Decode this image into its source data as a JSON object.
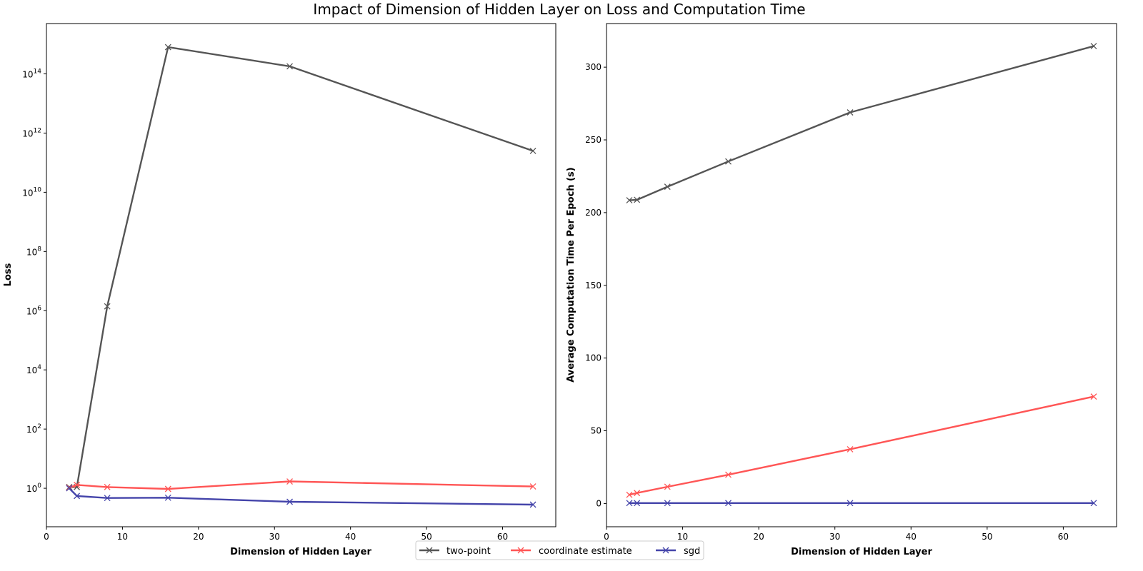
{
  "chart_data": {
    "title": "Impact of Dimension of Hidden Layer on Loss and Computation Time",
    "legend": {
      "placement": "bottom-center",
      "entries": [
        "two-point",
        "coordinate estimate",
        "sgd"
      ]
    },
    "series_styles": [
      {
        "name": "two-point",
        "color": "#555555",
        "marker": "x"
      },
      {
        "name": "coordinate estimate",
        "color": "#ff5555",
        "marker": "x"
      },
      {
        "name": "sgd",
        "color": "#4444aa",
        "marker": "x"
      }
    ],
    "charts": [
      {
        "type": "line",
        "xlabel": "Dimension of Hidden Layer",
        "ylabel": "Loss",
        "yscale": "log",
        "xlim": [
          0,
          67
        ],
        "ylim_log10": [
          -1.3,
          15.7
        ],
        "xticks": [
          0,
          10,
          20,
          30,
          40,
          50,
          60
        ],
        "yticks_exponent": [
          0,
          2,
          4,
          6,
          8,
          10,
          12,
          14
        ],
        "ytick_base": "10",
        "grid": false,
        "x": [
          3,
          4,
          8,
          16,
          32,
          64
        ],
        "series": [
          {
            "name": "two-point",
            "values": [
              1.1,
              1.1,
              1400000.0,
              800000000000000.0,
              180000000000000.0,
              250000000000.0
            ]
          },
          {
            "name": "coordinate estimate",
            "values": [
              1.05,
              1.3,
              1.1,
              0.95,
              1.7,
              1.15
            ]
          },
          {
            "name": "sgd",
            "values": [
              1.0,
              0.55,
              0.47,
              0.48,
              0.35,
              0.28
            ]
          }
        ]
      },
      {
        "type": "line",
        "xlabel": "Dimension of Hidden Layer",
        "ylabel": "Average Computation Time Per Epoch (s)",
        "yscale": "linear",
        "xlim": [
          0,
          67
        ],
        "ylim": [
          -16,
          330
        ],
        "xticks": [
          0,
          10,
          20,
          30,
          40,
          50,
          60
        ],
        "yticks": [
          0,
          50,
          100,
          150,
          200,
          250,
          300
        ],
        "grid": false,
        "x": [
          3,
          4,
          8,
          16,
          32,
          64
        ],
        "series": [
          {
            "name": "two-point",
            "values": [
              208.5,
              208.8,
              217.8,
              235.2,
              268.9,
              314.5
            ]
          },
          {
            "name": "coordinate estimate",
            "values": [
              6.0,
              7.2,
              11.5,
              19.8,
              37.3,
              73.5
            ]
          },
          {
            "name": "sgd",
            "values": [
              0.3,
              0.3,
              0.3,
              0.3,
              0.3,
              0.3
            ]
          }
        ]
      }
    ]
  }
}
